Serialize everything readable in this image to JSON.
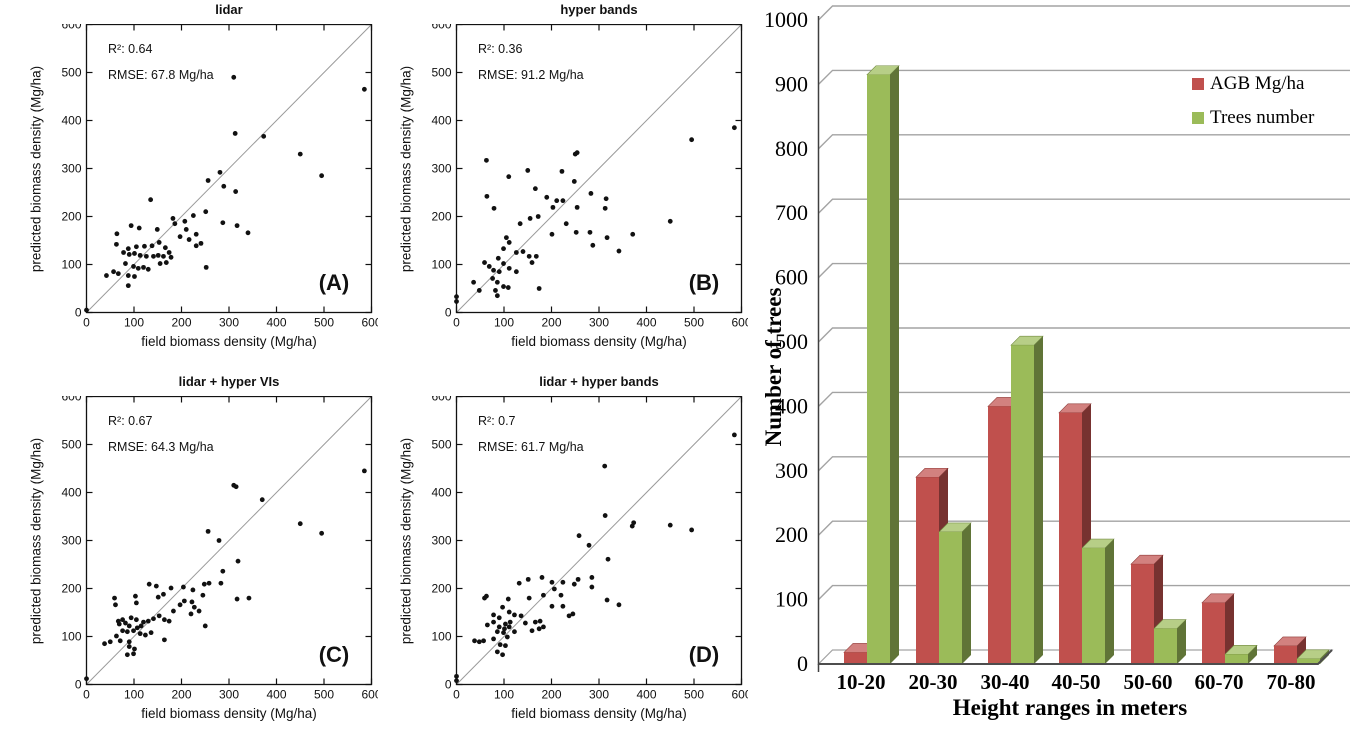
{
  "figure": {
    "background": "#ffffff"
  },
  "chart_data": [
    {
      "type": "scatter",
      "panel_label": "(A)",
      "title": "lidar",
      "r2_text": "R²: 0.64",
      "rmse_text": "RMSE: 67.8 Mg/ha",
      "xlabel": "field biomass density (Mg/ha)",
      "ylabel": "predicted biomass density (Mg/ha)",
      "xlim": [
        0,
        600
      ],
      "ylim": [
        0,
        600
      ],
      "xticks": [
        0,
        100,
        200,
        300,
        400,
        500,
        600
      ],
      "yticks": [
        0,
        100,
        200,
        300,
        400,
        500,
        600
      ],
      "identity_line": true,
      "point_color": "#111111",
      "points": [
        [
          0,
          5
        ],
        [
          313,
          373
        ],
        [
          373,
          367
        ],
        [
          256,
          275
        ],
        [
          281,
          292
        ],
        [
          289,
          263
        ],
        [
          314,
          252
        ],
        [
          135,
          235
        ],
        [
          225,
          202
        ],
        [
          251,
          210
        ],
        [
          182,
          196
        ],
        [
          287,
          187
        ],
        [
          317,
          181
        ],
        [
          340,
          166
        ],
        [
          94,
          181
        ],
        [
          111,
          176
        ],
        [
          64,
          164
        ],
        [
          149,
          173
        ],
        [
          186,
          185
        ],
        [
          207,
          190
        ],
        [
          231,
          163
        ],
        [
          63,
          142
        ],
        [
          88,
          133
        ],
        [
          105,
          137
        ],
        [
          122,
          138
        ],
        [
          138,
          139
        ],
        [
          153,
          146
        ],
        [
          166,
          135
        ],
        [
          174,
          125
        ],
        [
          78,
          125
        ],
        [
          90,
          121
        ],
        [
          101,
          123
        ],
        [
          113,
          119
        ],
        [
          126,
          117
        ],
        [
          141,
          117
        ],
        [
          151,
          119
        ],
        [
          162,
          117
        ],
        [
          82,
          102
        ],
        [
          99,
          96
        ],
        [
          109,
          92
        ],
        [
          120,
          94
        ],
        [
          130,
          90
        ],
        [
          57,
          85
        ],
        [
          42,
          77
        ],
        [
          67,
          81
        ],
        [
          88,
          77
        ],
        [
          101,
          75
        ],
        [
          88,
          56
        ],
        [
          155,
          102
        ],
        [
          168,
          104
        ],
        [
          178,
          115
        ],
        [
          197,
          158
        ],
        [
          216,
          152
        ],
        [
          231,
          139
        ],
        [
          241,
          144
        ],
        [
          210,
          173
        ],
        [
          252,
          94
        ],
        [
          310,
          490
        ],
        [
          450,
          330
        ],
        [
          495,
          285
        ],
        [
          585,
          465
        ]
      ]
    },
    {
      "type": "scatter",
      "panel_label": "(B)",
      "title": "hyper bands",
      "r2_text": "R²: 0.36",
      "rmse_text": "RMSE: 91.2 Mg/ha",
      "xlabel": "field biomass density (Mg/ha)",
      "ylabel": "predicted biomass density (Mg/ha)",
      "xlim": [
        0,
        600
      ],
      "ylim": [
        0,
        600
      ],
      "xticks": [
        0,
        100,
        200,
        300,
        400,
        500,
        600
      ],
      "yticks": [
        0,
        100,
        200,
        300,
        400,
        500,
        600
      ],
      "identity_line": true,
      "point_color": "#111111",
      "points": [
        [
          63,
          317
        ],
        [
          254,
          333
        ],
        [
          110,
          283
        ],
        [
          150,
          296
        ],
        [
          222,
          294
        ],
        [
          248,
          273
        ],
        [
          166,
          258
        ],
        [
          64,
          242
        ],
        [
          190,
          240
        ],
        [
          211,
          233
        ],
        [
          224,
          233
        ],
        [
          203,
          219
        ],
        [
          79,
          217
        ],
        [
          254,
          219
        ],
        [
          283,
          248
        ],
        [
          315,
          237
        ],
        [
          313,
          217
        ],
        [
          155,
          196
        ],
        [
          172,
          200
        ],
        [
          134,
          185
        ],
        [
          201,
          163
        ],
        [
          231,
          185
        ],
        [
          252,
          167
        ],
        [
          281,
          167
        ],
        [
          317,
          156
        ],
        [
          371,
          163
        ],
        [
          287,
          140
        ],
        [
          342,
          128
        ],
        [
          105,
          156
        ],
        [
          111,
          146
        ],
        [
          99,
          133
        ],
        [
          126,
          125
        ],
        [
          140,
          127
        ],
        [
          153,
          117
        ],
        [
          168,
          117
        ],
        [
          88,
          113
        ],
        [
          99,
          102
        ],
        [
          59,
          104
        ],
        [
          69,
          96
        ],
        [
          78,
          88
        ],
        [
          90,
          85
        ],
        [
          111,
          92
        ],
        [
          126,
          85
        ],
        [
          36,
          63
        ],
        [
          48,
          46
        ],
        [
          76,
          71
        ],
        [
          86,
          63
        ],
        [
          99,
          54
        ],
        [
          82,
          46
        ],
        [
          86,
          35
        ],
        [
          109,
          52
        ],
        [
          174,
          50
        ],
        [
          0,
          33
        ],
        [
          0,
          23
        ],
        [
          159,
          104
        ],
        [
          250,
          330
        ],
        [
          450,
          190
        ],
        [
          495,
          360
        ],
        [
          585,
          385
        ]
      ]
    },
    {
      "type": "scatter",
      "panel_label": "(C)",
      "title": "lidar + hyper VIs",
      "r2_text": "R²: 0.67",
      "rmse_text": "RMSE: 64.3 Mg/ha",
      "xlabel": "field biomass density (Mg/ha)",
      "ylabel": "predicted biomass density (Mg/ha)",
      "xlim": [
        0,
        600
      ],
      "ylim": [
        0,
        600
      ],
      "xticks": [
        0,
        100,
        200,
        300,
        400,
        500,
        600
      ],
      "yticks": [
        0,
        100,
        200,
        300,
        400,
        500,
        600
      ],
      "identity_line": true,
      "point_color": "#111111",
      "points": [
        [
          0,
          12
        ],
        [
          256,
          319
        ],
        [
          279,
          300
        ],
        [
          319,
          257
        ],
        [
          287,
          236
        ],
        [
          258,
          211
        ],
        [
          283,
          211
        ],
        [
          132,
          209
        ],
        [
          147,
          205
        ],
        [
          178,
          201
        ],
        [
          204,
          203
        ],
        [
          224,
          197
        ],
        [
          245,
          186
        ],
        [
          248,
          209
        ],
        [
          59,
          180
        ],
        [
          61,
          166
        ],
        [
          103,
          184
        ],
        [
          105,
          170
        ],
        [
          151,
          182
        ],
        [
          162,
          188
        ],
        [
          183,
          153
        ],
        [
          197,
          166
        ],
        [
          206,
          174
        ],
        [
          222,
          172
        ],
        [
          227,
          161
        ],
        [
          237,
          153
        ],
        [
          220,
          147
        ],
        [
          250,
          122
        ],
        [
          67,
          132
        ],
        [
          76,
          135
        ],
        [
          69,
          126
        ],
        [
          82,
          128
        ],
        [
          94,
          139
        ],
        [
          105,
          135
        ],
        [
          90,
          122
        ],
        [
          76,
          112
        ],
        [
          86,
          110
        ],
        [
          99,
          112
        ],
        [
          107,
          118
        ],
        [
          115,
          122
        ],
        [
          120,
          130
        ],
        [
          130,
          132
        ],
        [
          141,
          137
        ],
        [
          153,
          143
        ],
        [
          164,
          135
        ],
        [
          174,
          132
        ],
        [
          113,
          106
        ],
        [
          124,
          103
        ],
        [
          136,
          108
        ],
        [
          63,
          101
        ],
        [
          50,
          89
        ],
        [
          38,
          85
        ],
        [
          71,
          91
        ],
        [
          90,
          89
        ],
        [
          90,
          79
        ],
        [
          101,
          74
        ],
        [
          86,
          62
        ],
        [
          99,
          64
        ],
        [
          164,
          93
        ],
        [
          317,
          178
        ],
        [
          342,
          180
        ],
        [
          310,
          415
        ],
        [
          315,
          412
        ],
        [
          370,
          385
        ],
        [
          450,
          335
        ],
        [
          495,
          315
        ],
        [
          585,
          445
        ]
      ]
    },
    {
      "type": "scatter",
      "panel_label": "(D)",
      "title": "lidar + hyper bands",
      "r2_text": "R²: 0.7",
      "rmse_text": "RMSE: 61.7 Mg/ha",
      "xlabel": "field biomass density (Mg/ha)",
      "ylabel": "predicted biomass density (Mg/ha)",
      "xlim": [
        0,
        600
      ],
      "ylim": [
        0,
        600
      ],
      "xticks": [
        0,
        100,
        200,
        300,
        400,
        500,
        600
      ],
      "yticks": [
        0,
        100,
        200,
        300,
        400,
        500,
        600
      ],
      "identity_line": true,
      "point_color": "#111111",
      "points": [
        [
          0,
          17
        ],
        [
          0,
          8
        ],
        [
          313,
          352
        ],
        [
          373,
          337
        ],
        [
          258,
          310
        ],
        [
          279,
          290
        ],
        [
          319,
          261
        ],
        [
          132,
          211
        ],
        [
          151,
          219
        ],
        [
          180,
          223
        ],
        [
          201,
          213
        ],
        [
          206,
          199
        ],
        [
          224,
          213
        ],
        [
          248,
          209
        ],
        [
          256,
          219
        ],
        [
          285,
          223
        ],
        [
          285,
          203
        ],
        [
          183,
          186
        ],
        [
          220,
          186
        ],
        [
          59,
          180
        ],
        [
          63,
          184
        ],
        [
          109,
          178
        ],
        [
          153,
          180
        ],
        [
          201,
          163
        ],
        [
          224,
          163
        ],
        [
          317,
          176
        ],
        [
          342,
          166
        ],
        [
          97,
          161
        ],
        [
          111,
          151
        ],
        [
          78,
          145
        ],
        [
          90,
          139
        ],
        [
          122,
          145
        ],
        [
          136,
          143
        ],
        [
          237,
          143
        ],
        [
          245,
          147
        ],
        [
          78,
          130
        ],
        [
          103,
          126
        ],
        [
          113,
          130
        ],
        [
          145,
          128
        ],
        [
          166,
          130
        ],
        [
          176,
          132
        ],
        [
          65,
          124
        ],
        [
          90,
          120
        ],
        [
          101,
          116
        ],
        [
          111,
          120
        ],
        [
          86,
          110
        ],
        [
          99,
          108
        ],
        [
          122,
          110
        ],
        [
          159,
          112
        ],
        [
          174,
          116
        ],
        [
          183,
          120
        ],
        [
          38,
          91
        ],
        [
          48,
          89
        ],
        [
          57,
          91
        ],
        [
          78,
          95
        ],
        [
          107,
          99
        ],
        [
          92,
          83
        ],
        [
          103,
          81
        ],
        [
          86,
          68
        ],
        [
          97,
          62
        ],
        [
          312,
          455
        ],
        [
          370,
          330
        ],
        [
          450,
          332
        ],
        [
          495,
          322
        ],
        [
          585,
          520
        ]
      ]
    },
    {
      "type": "bar",
      "style": "3d",
      "categories": [
        "10-20",
        "20-30",
        "30-40",
        "40-50",
        "50-60",
        "60-70",
        "70-80"
      ],
      "series": [
        {
          "name": "AGB Mg/ha",
          "color": "#c0504d",
          "values": [
            18,
            290,
            400,
            390,
            155,
            95,
            28
          ]
        },
        {
          "name": "Trees number",
          "color": "#9bbb59",
          "values": [
            915,
            205,
            495,
            180,
            55,
            15,
            8
          ]
        }
      ],
      "xlabel": "Height ranges in meters",
      "ylabel": "Number of trees",
      "ylim": [
        0,
        1000
      ],
      "ytick_step": 100,
      "gridline_color": "#a3a3a3",
      "axis_color": "#404040",
      "legend_position": "top-right",
      "grid": true
    }
  ]
}
